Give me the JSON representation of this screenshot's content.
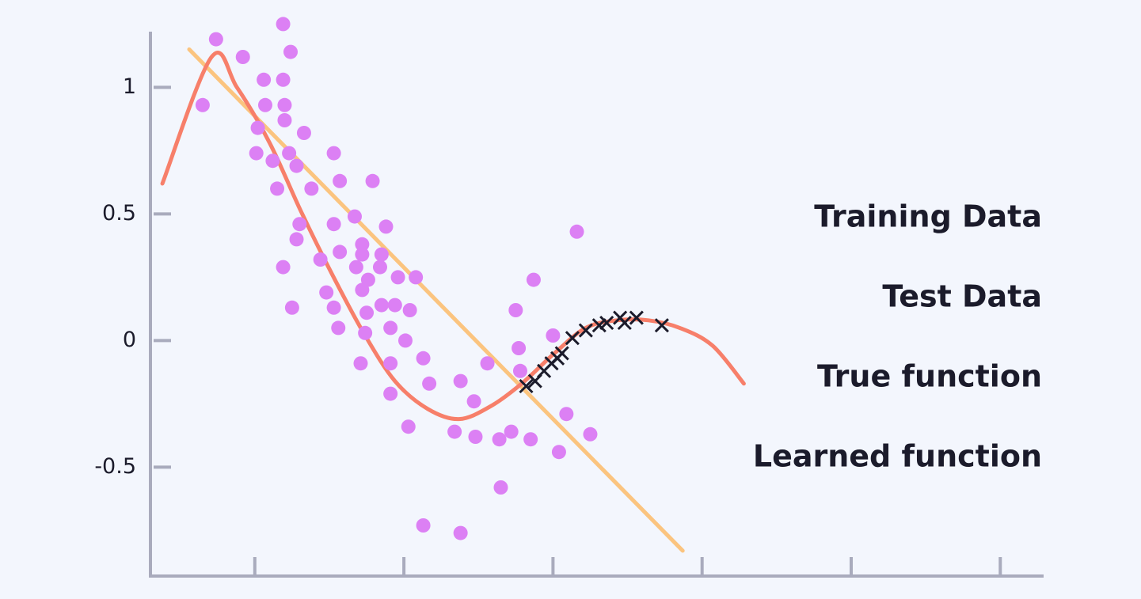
{
  "chart_data": {
    "type": "scatter",
    "xlim": [
      0.3,
      6.28
    ],
    "xticks": [
      1,
      2,
      3,
      4,
      5,
      6
    ],
    "ylim": [
      -0.93,
      1.22
    ],
    "yticks": [
      1,
      0.5,
      0,
      -0.5
    ],
    "series": [
      {
        "name": "Training Data",
        "color": "#dc80f4",
        "mode": "markers",
        "marker": "circle",
        "x": [
          0.65,
          0.74,
          0.92,
          1.19,
          1.24,
          1.06,
          1.19,
          1.07,
          1.2,
          1.2,
          1.02,
          1.33,
          1.01,
          1.23,
          1.53,
          1.12,
          1.28,
          1.15,
          1.38,
          1.57,
          1.79,
          1.67,
          1.3,
          1.53,
          1.88,
          1.28,
          1.44,
          1.57,
          1.72,
          1.72,
          1.85,
          1.19,
          1.68,
          1.84,
          1.76,
          1.96,
          2.08,
          1.48,
          1.72,
          1.53,
          1.25,
          1.85,
          1.94,
          1.75,
          2.04,
          1.56,
          1.74,
          1.91,
          2.01,
          1.71,
          1.91,
          2.13,
          1.91,
          2.17,
          2.03,
          2.38,
          2.47,
          2.56,
          2.75,
          2.87,
          2.77,
          2.78,
          3.0,
          3.16,
          2.34,
          2.48,
          2.64,
          2.72,
          2.85,
          3.09,
          3.25,
          3.04,
          2.65,
          2.13,
          2.38
        ],
        "values": [
          0.93,
          1.19,
          1.12,
          1.25,
          1.14,
          1.03,
          1.03,
          0.93,
          0.93,
          0.87,
          0.84,
          0.82,
          0.74,
          0.74,
          0.74,
          0.71,
          0.69,
          0.6,
          0.6,
          0.63,
          0.63,
          0.49,
          0.46,
          0.46,
          0.45,
          0.4,
          0.32,
          0.35,
          0.38,
          0.34,
          0.34,
          0.29,
          0.29,
          0.29,
          0.24,
          0.25,
          0.25,
          0.19,
          0.2,
          0.13,
          0.13,
          0.14,
          0.14,
          0.11,
          0.12,
          0.05,
          0.03,
          0.05,
          0,
          -0.09,
          -0.09,
          -0.07,
          -0.21,
          -0.17,
          -0.34,
          -0.16,
          -0.24,
          -0.09,
          0.12,
          0.24,
          -0.03,
          -0.12,
          0.02,
          0.43,
          -0.36,
          -0.38,
          -0.39,
          -0.36,
          -0.39,
          -0.29,
          -0.37,
          -0.44,
          -0.58,
          -0.73,
          -0.76
        ]
      },
      {
        "name": "Test Data",
        "color": "#1b1b2b",
        "mode": "markers",
        "marker": "x",
        "x": [
          2.82,
          2.88,
          2.94,
          2.99,
          3.03,
          3.06,
          3.13,
          3.22,
          3.31,
          3.36,
          3.45,
          3.48,
          3.56,
          3.73
        ],
        "values": [
          -0.18,
          -0.16,
          -0.12,
          -0.09,
          -0.07,
          -0.05,
          0.01,
          0.04,
          0.06,
          0.07,
          0.09,
          0.07,
          0.09,
          0.06
        ]
      },
      {
        "name": "True function",
        "color": "#f77f6a",
        "mode": "lines",
        "x": [
          0.38,
          0.71,
          0.88,
          1.1,
          1.31,
          1.52,
          1.73,
          1.94,
          2.16,
          2.37,
          2.58,
          2.79,
          3.01,
          3.22,
          3.43,
          3.64,
          3.85,
          4.07,
          4.28
        ],
        "values": [
          0.62,
          1.12,
          1.0,
          0.78,
          0.51,
          0.26,
          0.03,
          -0.16,
          -0.27,
          -0.31,
          -0.26,
          -0.17,
          -0.05,
          0.05,
          0.08,
          0.08,
          0.05,
          -0.02,
          -0.17
        ]
      },
      {
        "name": "Learned function",
        "color": "#fbc47f",
        "mode": "lines",
        "x": [
          0.56,
          3.87
        ],
        "values": [
          1.15,
          -0.83
        ]
      }
    ]
  }
}
